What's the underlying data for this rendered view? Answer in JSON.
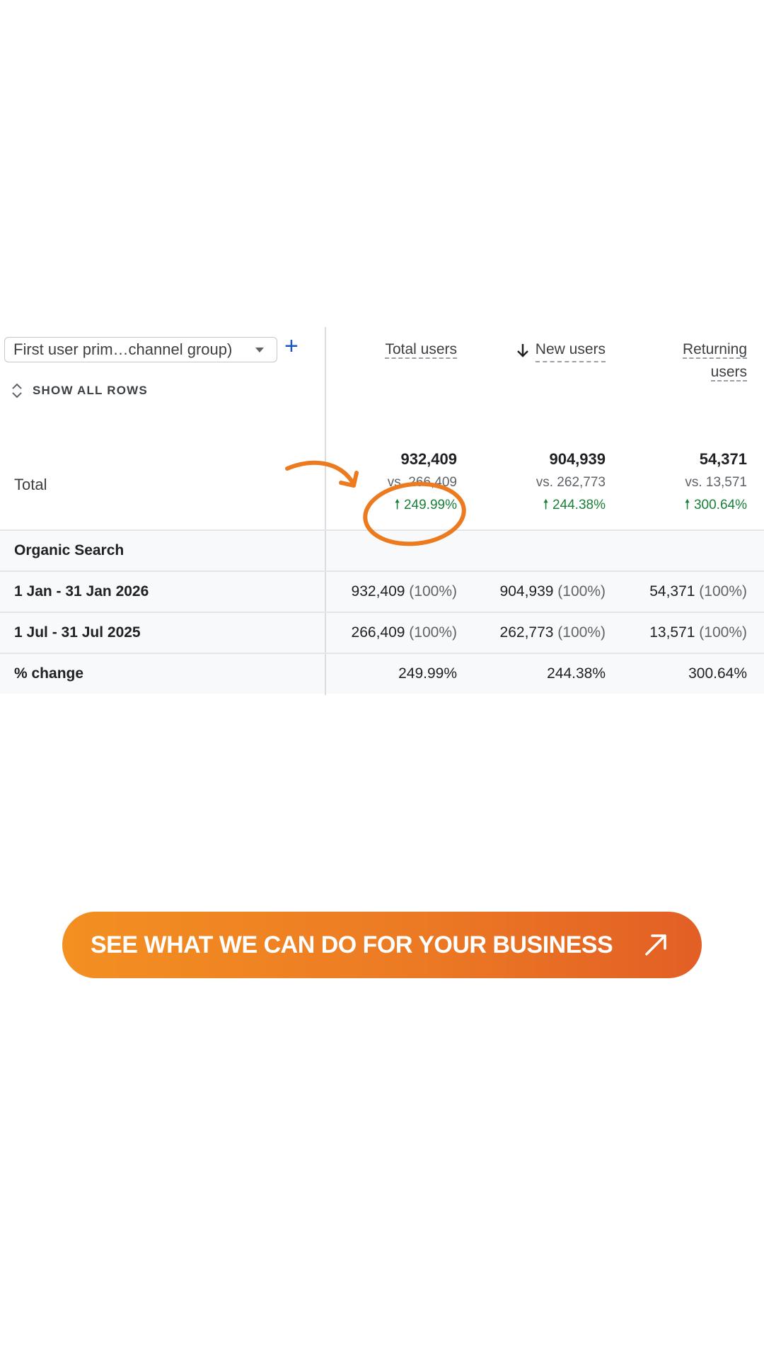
{
  "report": {
    "dimension_select": "First user prim…channel group)",
    "add_dimension_icon": "plus-icon",
    "show_all_rows": "SHOW ALL ROWS",
    "columns": {
      "total_users": "Total users",
      "new_users": "New users",
      "returning_users_line1": "Returning",
      "returning_users_line2": "users",
      "sort_icon": "arrow-down-icon"
    },
    "total": {
      "label": "Total",
      "total_users": {
        "value": "932,409",
        "vs": "vs. 266,409",
        "change": "249.99%"
      },
      "new_users": {
        "value": "904,939",
        "vs": "vs. 262,773",
        "change": "244.38%"
      },
      "returning_users": {
        "value": "54,371",
        "vs": "vs. 13,571",
        "change": "300.64%"
      }
    },
    "rows": [
      {
        "label": "Organic Search"
      },
      {
        "label": "1 Jan - 31 Jan 2026",
        "total_users": "932,409",
        "total_users_pct": "(100%)",
        "new_users": "904,939",
        "new_users_pct": "(100%)",
        "returning_users": "54,371",
        "returning_users_pct": "(100%)"
      },
      {
        "label": "1 Jul - 31 Jul 2025",
        "total_users": "266,409",
        "total_users_pct": "(100%)",
        "new_users": "262,773",
        "new_users_pct": "(100%)",
        "returning_users": "13,571",
        "returning_users_pct": "(100%)"
      },
      {
        "label": "% change",
        "total_users": "249.99%",
        "new_users": "244.38%",
        "returning_users": "300.64%"
      }
    ],
    "colors": {
      "positive": "#188038",
      "accent_plus": "#1a57c5",
      "annotation": "#ec7a1e"
    }
  },
  "cta": {
    "label": "SEE WHAT WE CAN DO FOR YOUR BUSINESS",
    "icon": "arrow-up-right-icon",
    "gradient_start": "#f39021",
    "gradient_end": "#e25f25"
  }
}
